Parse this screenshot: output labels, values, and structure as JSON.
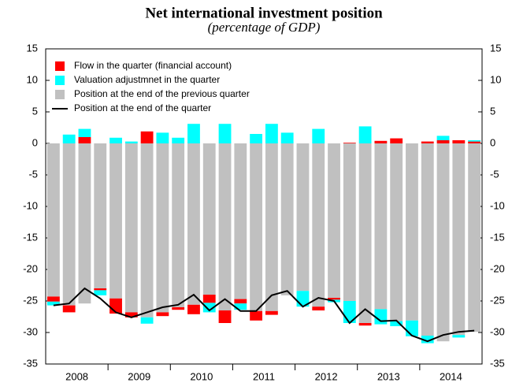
{
  "chart_data": {
    "type": "stacked-bar-line",
    "title": "Net international investment position",
    "subtitle": "(percentage of GDP)",
    "years": [
      "2008",
      "2009",
      "2010",
      "2011",
      "2012",
      "2013",
      "2014"
    ],
    "series": [
      {
        "name": "Flow in the quarter (financial account)",
        "color": "#ff0000",
        "kind": "bar",
        "values": [
          -0.8,
          -1.1,
          1.0,
          -0.3,
          -2.4,
          -0.8,
          1.9,
          -0.6,
          -0.4,
          -1.5,
          -1.3,
          -2.0,
          -0.7,
          -1.5,
          -0.6,
          0,
          0,
          -0.6,
          -0.3,
          0.1,
          -0.4,
          0.4,
          0.8,
          0,
          0.3,
          0.5,
          0.5,
          0.3
        ]
      },
      {
        "name": "Valuation adjustmnet in the quarter",
        "color": "#00ffff",
        "kind": "bar",
        "values": [
          -0.6,
          1.4,
          1.3,
          -0.8,
          0.9,
          0.3,
          -1.0,
          1.7,
          0.9,
          3.1,
          -1.5,
          3.1,
          -1.0,
          1.5,
          3.1,
          1.7,
          -2.5,
          2.3,
          -0.4,
          -3.5,
          2.7,
          -2.4,
          -0.8,
          -2.5,
          -1.2,
          0.7,
          -0.4,
          0.2
        ]
      },
      {
        "name": "Position at the end of the previous quarter",
        "color": "#c0c0c0",
        "kind": "bar",
        "values": [
          -24.3,
          -25.7,
          -25.4,
          -23.0,
          -24.6,
          -26.8,
          -27.6,
          -26.8,
          -26.0,
          -25.6,
          -24.0,
          -26.5,
          -24.7,
          -26.6,
          -26.6,
          -24.1,
          -23.4,
          -25.9,
          -24.5,
          -25.0,
          -28.5,
          -26.3,
          -28.2,
          -28.1,
          -30.5,
          -31.4,
          -30.4,
          -29.9
        ]
      },
      {
        "name": "Position at the end of the quarter",
        "color": "#000000",
        "kind": "line",
        "values": [
          -25.7,
          -25.4,
          -23.0,
          -24.6,
          -26.8,
          -27.6,
          -26.8,
          -26.0,
          -25.6,
          -24.0,
          -26.5,
          -24.7,
          -26.6,
          -26.6,
          -24.1,
          -23.4,
          -25.9,
          -24.5,
          -25.0,
          -28.5,
          -26.3,
          -28.2,
          -28.1,
          -30.5,
          -31.4,
          -30.4,
          -29.9,
          -29.7
        ]
      }
    ],
    "stack_order": [
      2,
      0,
      1
    ],
    "ylim": [
      -35,
      15
    ],
    "yticks": [
      -35,
      -30,
      -25,
      -20,
      -15,
      -10,
      -5,
      0,
      5,
      10,
      15
    ],
    "y2lim": [
      -35,
      15
    ],
    "y2ticks": [
      -35,
      -30,
      -25,
      -20,
      -15,
      -10,
      -5,
      0,
      5,
      10,
      15
    ],
    "legend": "upper left"
  }
}
